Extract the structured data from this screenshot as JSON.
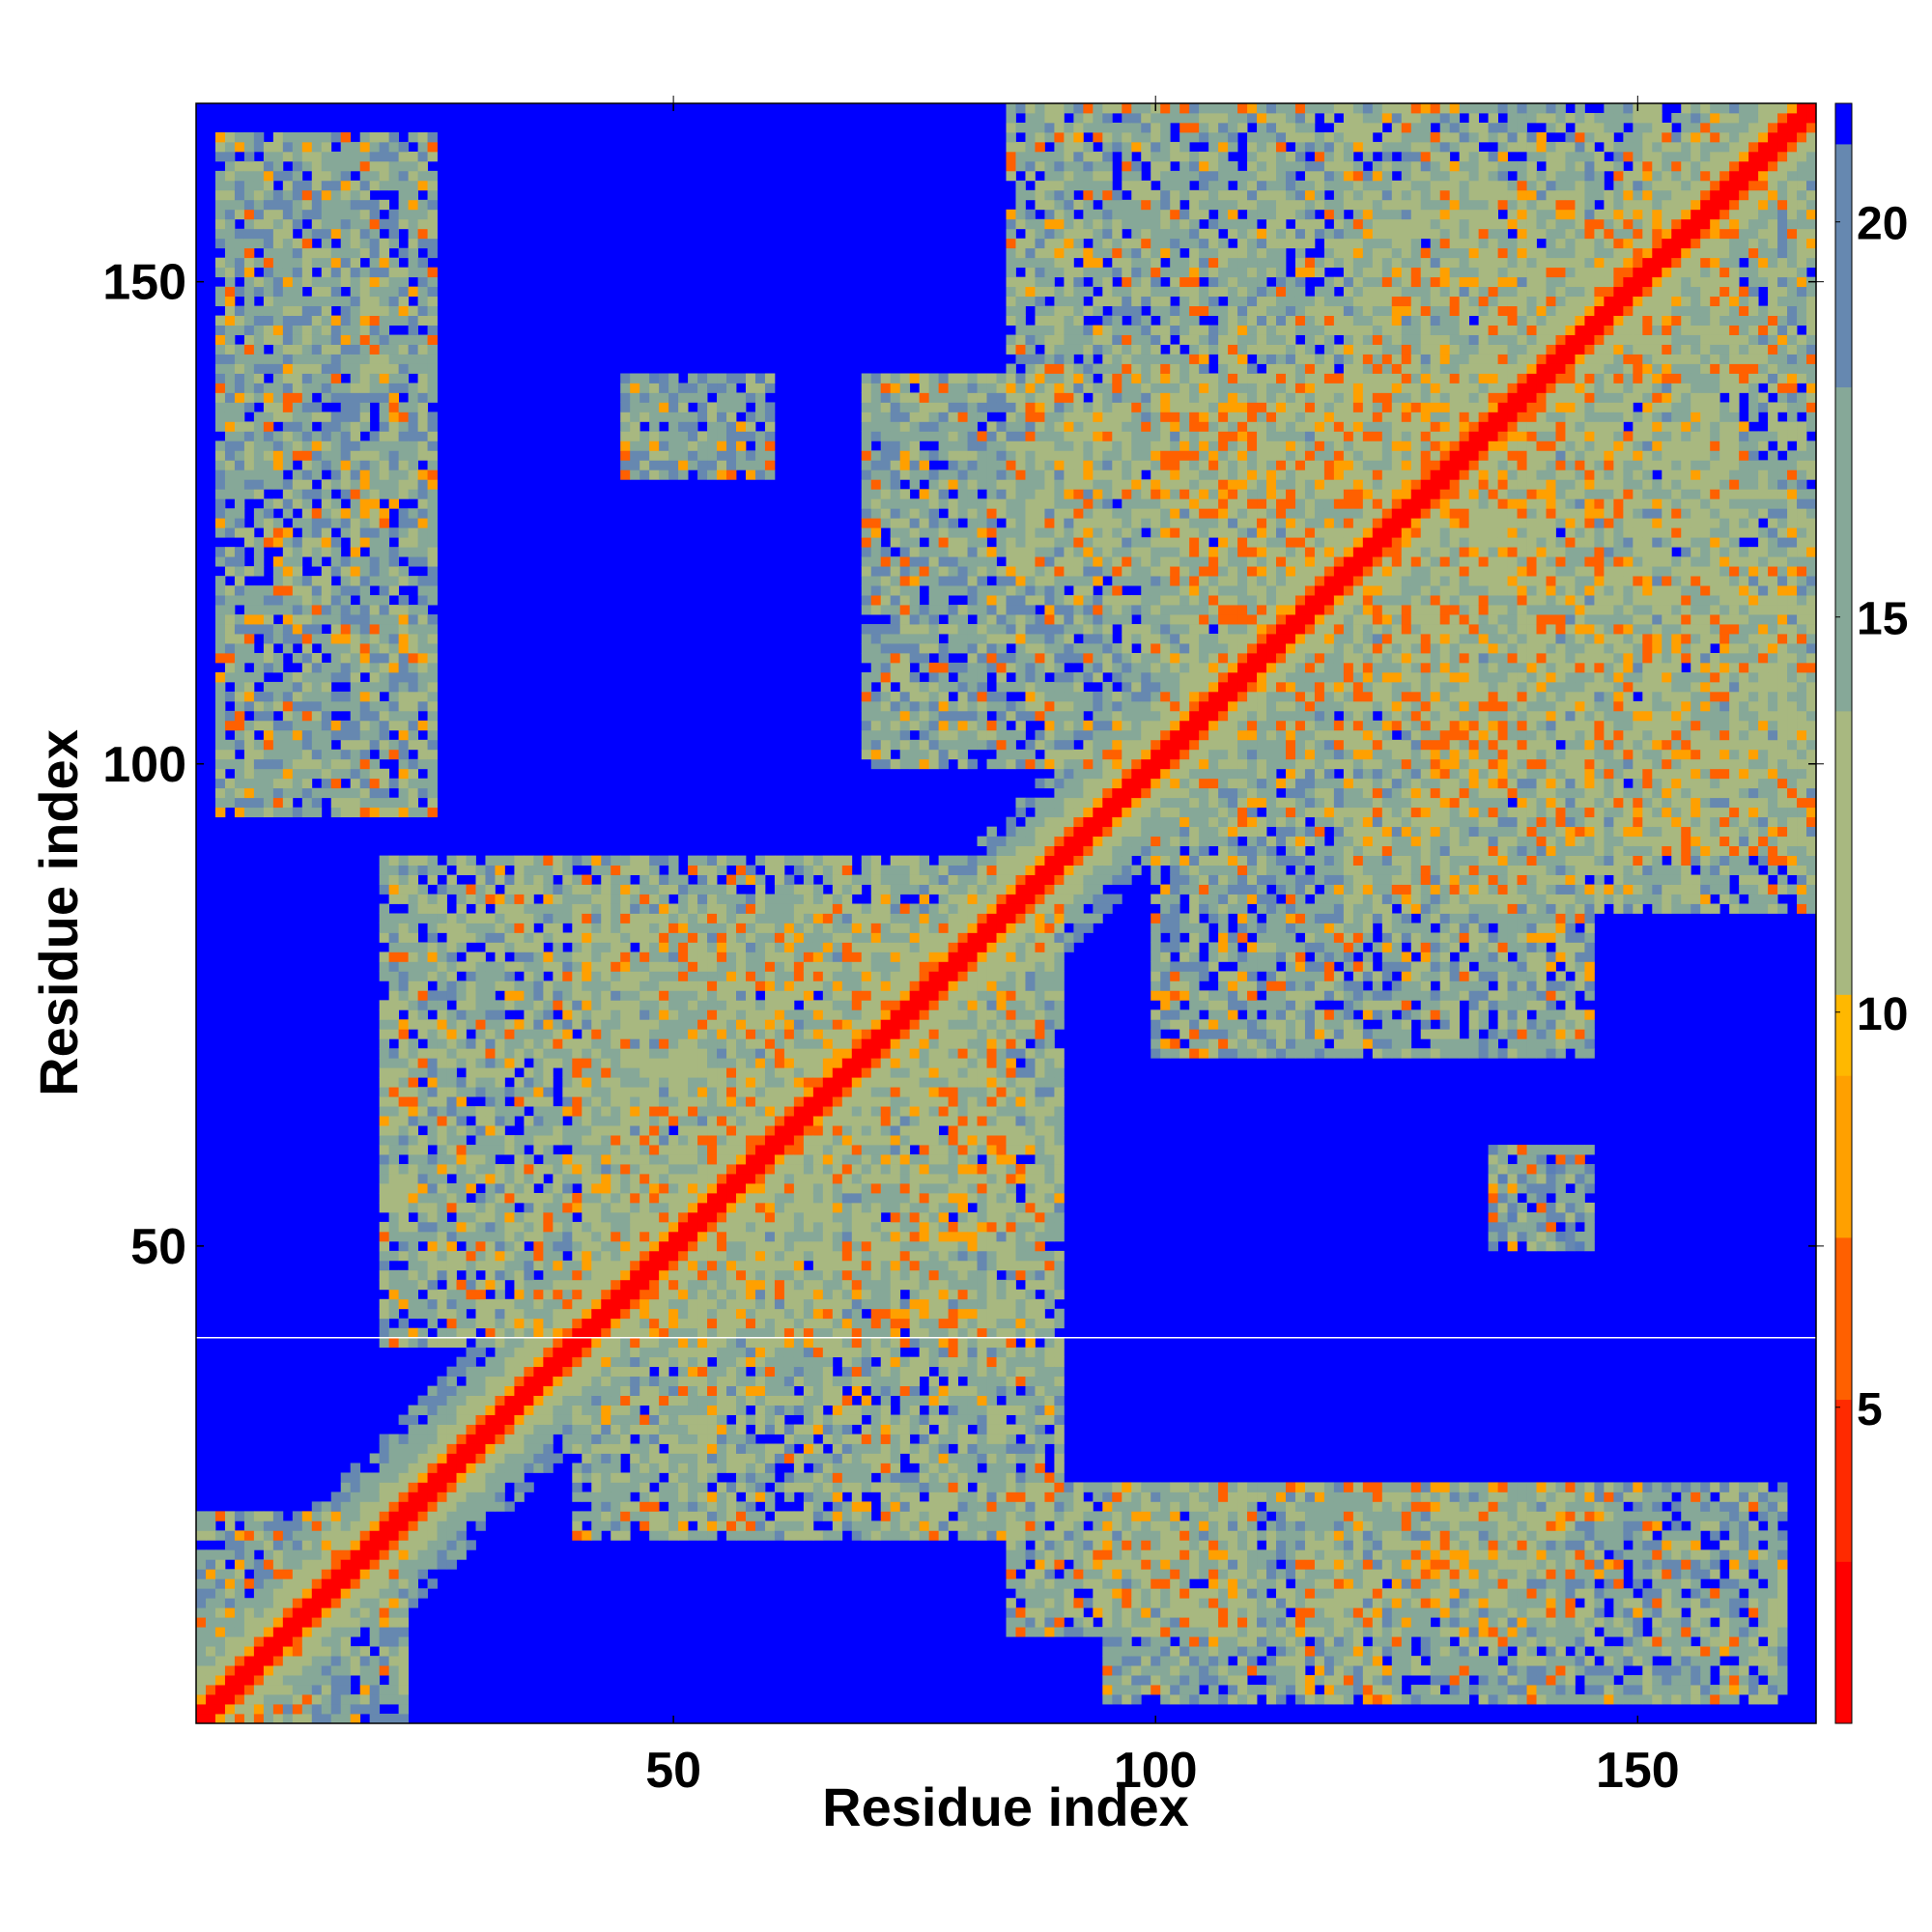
{
  "chart_data": {
    "type": "heatmap",
    "title": "",
    "xlabel": "Residue index",
    "ylabel": "Residue index",
    "n_residues": 168,
    "xlim": [
      1,
      168
    ],
    "ylim": [
      1,
      168
    ],
    "x_ticks": [
      {
        "value": 50,
        "label": "50"
      },
      {
        "value": 100,
        "label": "100"
      },
      {
        "value": 150,
        "label": "150"
      }
    ],
    "y_ticks": [
      {
        "value": 50,
        "label": "50"
      },
      {
        "value": 100,
        "label": "100"
      },
      {
        "value": 150,
        "label": "150"
      }
    ],
    "colorbar": {
      "range": [
        1,
        21.5
      ],
      "ticks": [
        {
          "value": 5,
          "label": "5"
        },
        {
          "value": 10,
          "label": "10"
        },
        {
          "value": 15,
          "label": "15"
        },
        {
          "value": 20,
          "label": "20"
        }
      ],
      "stops": [
        {
          "value": 1,
          "color": "#ff0000"
        },
        {
          "value": 3,
          "color": "#ff2a00"
        },
        {
          "value": 5,
          "color": "#ff6000"
        },
        {
          "value": 7,
          "color": "#ffa000"
        },
        {
          "value": 9,
          "color": "#ffb800"
        },
        {
          "value": 10,
          "color": "#a8b880"
        },
        {
          "value": 14,
          "color": "#86a898"
        },
        {
          "value": 18,
          "color": "#6688b0"
        },
        {
          "value": 20.8,
          "color": "#5a7fb8"
        },
        {
          "value": 21,
          "color": "#0000ff"
        }
      ]
    },
    "background_value": 21.5,
    "diagonal": {
      "core_value": 1,
      "halfwidth_orange": 2,
      "halfwidth_green": 7
    },
    "contact_regions": [
      {
        "x": [
          1,
          22
        ],
        "y": [
          1,
          22
        ],
        "value": 16
      },
      {
        "x": [
          3,
          25
        ],
        "y": [
          95,
          165
        ],
        "value": 16
      },
      {
        "x": [
          95,
          165
        ],
        "y": [
          3,
          25
        ],
        "value": 16
      },
      {
        "x": [
          20,
          85
        ],
        "y": [
          40,
          90
        ],
        "value": 15
      },
      {
        "x": [
          40,
          90
        ],
        "y": [
          20,
          85
        ],
        "value": 15
      },
      {
        "x": [
          85,
          160
        ],
        "y": [
          120,
          168
        ],
        "value": 15
      },
      {
        "x": [
          120,
          168
        ],
        "y": [
          85,
          160
        ],
        "value": 15
      },
      {
        "x": [
          70,
          140
        ],
        "y": [
          100,
          140
        ],
        "value": 16
      },
      {
        "x": [
          100,
          145
        ],
        "y": [
          70,
          140
        ],
        "value": 16
      },
      {
        "x": [
          85,
          110
        ],
        "y": [
          10,
          25
        ],
        "value": 15
      },
      {
        "x": [
          115,
          145
        ],
        "y": [
          10,
          25
        ],
        "value": 16
      },
      {
        "x": [
          45,
          60
        ],
        "y": [
          130,
          140
        ],
        "value": 17
      },
      {
        "x": [
          135,
          145
        ],
        "y": [
          50,
          60
        ],
        "value": 17
      },
      {
        "x": [
          145,
          168
        ],
        "y": [
          90,
          120
        ],
        "value": 15
      }
    ],
    "hline_at_y": 40.5
  }
}
